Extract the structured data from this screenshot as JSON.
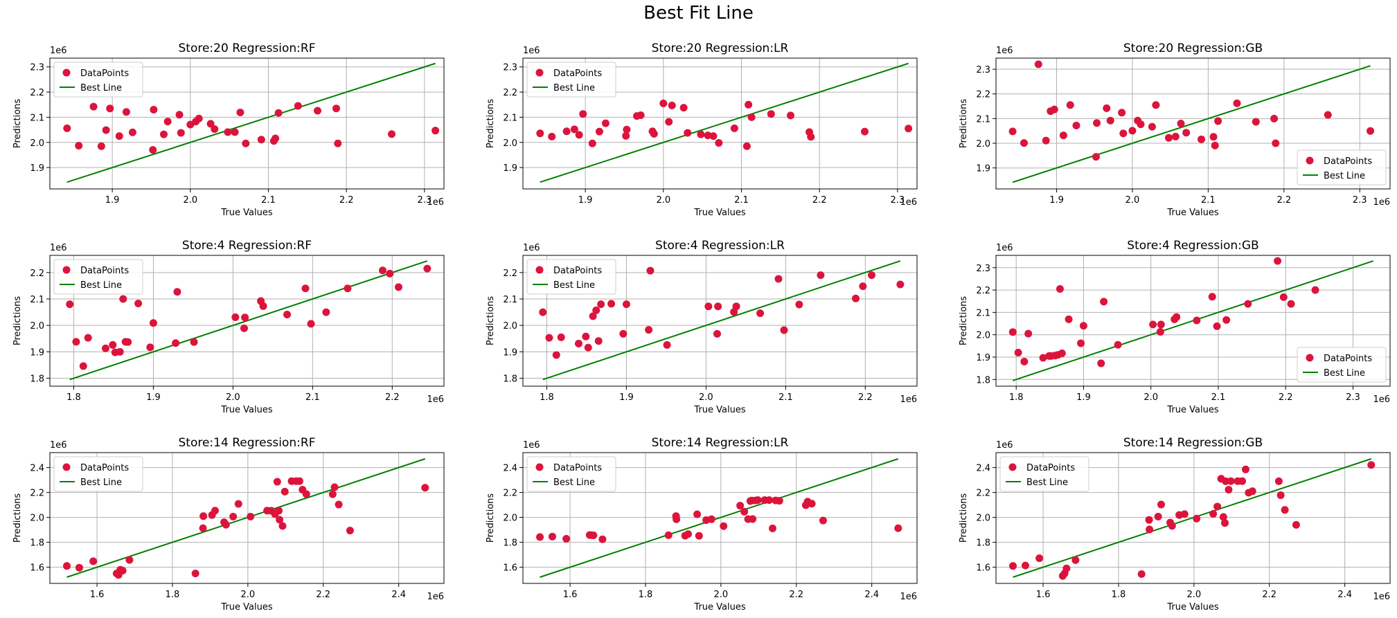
{
  "figure": {
    "title": "Best Fit Line",
    "colors": {
      "points": "#dc143c",
      "line": "#008000",
      "grid": "#b0b0b0"
    },
    "xlabel": "True Values",
    "ylabel": "Predictions",
    "offset_text": "1e6",
    "legend_labels": [
      "DataPoints",
      "Best Line"
    ]
  },
  "chart_data": [
    {
      "type": "scatter",
      "title": "Store:20 Regression:RF",
      "xlabel": "True Values",
      "ylabel": "Predictions",
      "xlim": [
        1.82,
        2.325
      ],
      "ylim": [
        1.815,
        2.335
      ],
      "xticks": [
        "1.9",
        "2.0",
        "2.1",
        "2.2",
        "2.3"
      ],
      "yticks": [
        "1.9",
        "2.0",
        "2.1",
        "2.2",
        "2.3"
      ],
      "legend": "top-left",
      "grid": true,
      "offset": "1e6",
      "series": [
        {
          "name": "DataPoints",
          "x": [
            1.842,
            1.857,
            1.876,
            1.886,
            1.892,
            1.897,
            1.909,
            1.918,
            1.926,
            1.952,
            1.953,
            1.966,
            1.971,
            1.986,
            1.988,
            2.0,
            2.007,
            2.011,
            2.026,
            2.031,
            2.048,
            2.057,
            2.064,
            2.071,
            2.091,
            2.107,
            2.109,
            2.113,
            2.138,
            2.163,
            2.187,
            2.189,
            2.258,
            2.314
          ],
          "y": [
            2.056,
            1.987,
            2.142,
            1.985,
            2.049,
            2.135,
            2.025,
            2.121,
            2.04,
            1.97,
            2.13,
            2.032,
            2.083,
            2.11,
            2.038,
            2.071,
            2.083,
            2.095,
            2.074,
            2.053,
            2.041,
            2.041,
            2.119,
            1.996,
            2.011,
            2.006,
            2.016,
            2.117,
            2.145,
            2.126,
            2.135,
            1.996,
            2.033,
            2.047
          ]
        },
        {
          "name": "Best Line",
          "x": [
            1.842,
            2.314
          ],
          "y": [
            1.842,
            2.314
          ]
        }
      ]
    },
    {
      "type": "scatter",
      "title": "Store:20 Regression:LR",
      "xlabel": "True Values",
      "ylabel": "Predictions",
      "xlim": [
        1.82,
        2.325
      ],
      "ylim": [
        1.815,
        2.335
      ],
      "xticks": [
        "1.9",
        "2.0",
        "2.1",
        "2.2",
        "2.3"
      ],
      "yticks": [
        "1.9",
        "2.0",
        "2.1",
        "2.2",
        "2.3"
      ],
      "legend": "top-left",
      "grid": true,
      "offset": "1e6",
      "series": [
        {
          "name": "DataPoints",
          "x": [
            1.842,
            1.857,
            1.876,
            1.886,
            1.892,
            1.897,
            1.909,
            1.918,
            1.926,
            1.952,
            1.953,
            1.966,
            1.971,
            1.986,
            1.988,
            2.0,
            2.007,
            2.011,
            2.026,
            2.031,
            2.048,
            2.057,
            2.064,
            2.071,
            2.091,
            2.107,
            2.109,
            2.113,
            2.138,
            2.163,
            2.187,
            2.189,
            2.258,
            2.314
          ],
          "y": [
            2.036,
            2.023,
            2.044,
            2.052,
            2.03,
            2.113,
            1.996,
            2.043,
            2.076,
            2.026,
            2.051,
            2.105,
            2.108,
            2.044,
            2.034,
            2.155,
            2.082,
            2.147,
            2.138,
            2.038,
            2.032,
            2.028,
            2.025,
            1.998,
            2.056,
            1.985,
            2.15,
            2.1,
            2.113,
            2.107,
            2.041,
            2.022,
            2.043,
            2.055
          ]
        },
        {
          "name": "Best Line",
          "x": [
            1.842,
            2.314
          ],
          "y": [
            1.842,
            2.314
          ]
        }
      ]
    },
    {
      "type": "scatter",
      "title": "Store:20 Regression:GB",
      "xlabel": "True Values",
      "ylabel": "Predictions",
      "xlim": [
        1.82,
        2.34
      ],
      "ylim": [
        1.815,
        2.345
      ],
      "xticks": [
        "1.9",
        "2.0",
        "2.1",
        "2.2",
        "2.3"
      ],
      "yticks": [
        "1.9",
        "2.0",
        "2.1",
        "2.2",
        "2.3"
      ],
      "legend": "bottom-right",
      "grid": true,
      "offset": "1e6",
      "series": [
        {
          "name": "DataPoints",
          "x": [
            1.842,
            1.857,
            1.876,
            1.886,
            1.892,
            1.897,
            1.909,
            1.918,
            1.926,
            1.952,
            1.953,
            1.966,
            1.971,
            1.986,
            1.988,
            2.0,
            2.007,
            2.011,
            2.026,
            2.031,
            2.048,
            2.057,
            2.064,
            2.071,
            2.091,
            2.107,
            2.109,
            2.113,
            2.138,
            2.163,
            2.187,
            2.189,
            2.258,
            2.314
          ],
          "y": [
            2.048,
            2.001,
            2.32,
            2.011,
            2.13,
            2.137,
            2.032,
            2.155,
            2.072,
            1.945,
            2.082,
            2.142,
            2.092,
            2.124,
            2.04,
            2.051,
            2.092,
            2.077,
            2.067,
            2.155,
            2.022,
            2.027,
            2.08,
            2.043,
            2.016,
            2.026,
            1.991,
            2.09,
            2.162,
            2.087,
            2.1,
            2.0,
            2.115,
            2.05
          ]
        },
        {
          "name": "Best Line",
          "x": [
            1.842,
            2.314
          ],
          "y": [
            1.842,
            2.314
          ]
        }
      ]
    },
    {
      "type": "scatter",
      "title": "Store:4 Regression:RF",
      "xlabel": "True Values",
      "ylabel": "Predictions",
      "xlim": [
        1.77,
        2.265
      ],
      "ylim": [
        1.77,
        2.265
      ],
      "xticks": [
        "1.8",
        "1.9",
        "2.0",
        "2.1",
        "2.2"
      ],
      "yticks": [
        "1.8",
        "1.9",
        "2.0",
        "2.1",
        "2.2"
      ],
      "legend": "top-left",
      "grid": true,
      "offset": "1e6",
      "series": [
        {
          "name": "DataPoints",
          "x": [
            1.795,
            1.803,
            1.812,
            1.818,
            1.84,
            1.849,
            1.852,
            1.858,
            1.862,
            1.865,
            1.868,
            1.881,
            1.896,
            1.9,
            1.928,
            1.93,
            1.951,
            2.003,
            2.014,
            2.015,
            2.035,
            2.038,
            2.068,
            2.091,
            2.098,
            2.117,
            2.144,
            2.188,
            2.197,
            2.208,
            2.244
          ],
          "y": [
            2.08,
            1.938,
            1.846,
            1.953,
            1.913,
            1.926,
            1.898,
            1.9,
            2.1,
            1.938,
            1.937,
            2.083,
            1.917,
            2.009,
            1.933,
            2.127,
            1.937,
            2.031,
            1.989,
            2.03,
            2.092,
            2.073,
            2.041,
            2.14,
            2.006,
            2.05,
            2.14,
            2.208,
            2.196,
            2.145,
            2.215
          ]
        },
        {
          "name": "Best Line",
          "x": [
            1.795,
            2.244
          ],
          "y": [
            1.795,
            2.244
          ]
        }
      ]
    },
    {
      "type": "scatter",
      "title": "Store:4 Regression:LR",
      "xlabel": "True Values",
      "ylabel": "Predictions",
      "xlim": [
        1.77,
        2.265
      ],
      "ylim": [
        1.77,
        2.265
      ],
      "xticks": [
        "1.8",
        "1.9",
        "2.0",
        "2.1",
        "2.2"
      ],
      "yticks": [
        "1.8",
        "1.9",
        "2.0",
        "2.1",
        "2.2"
      ],
      "legend": "top-left",
      "grid": true,
      "offset": "1e6",
      "series": [
        {
          "name": "DataPoints",
          "x": [
            1.795,
            1.803,
            1.812,
            1.818,
            1.84,
            1.849,
            1.852,
            1.858,
            1.862,
            1.865,
            1.868,
            1.881,
            1.896,
            1.9,
            1.928,
            1.93,
            1.951,
            2.003,
            2.014,
            2.015,
            2.035,
            2.038,
            2.068,
            2.091,
            2.098,
            2.117,
            2.144,
            2.188,
            2.197,
            2.208,
            2.244
          ],
          "y": [
            2.05,
            1.953,
            1.888,
            1.955,
            1.931,
            1.958,
            1.916,
            2.035,
            2.057,
            1.941,
            2.08,
            2.082,
            1.968,
            2.08,
            1.983,
            2.207,
            1.926,
            2.072,
            1.968,
            2.072,
            2.051,
            2.072,
            2.046,
            2.176,
            1.982,
            2.079,
            2.19,
            2.102,
            2.148,
            2.19,
            2.155
          ]
        },
        {
          "name": "Best Line",
          "x": [
            1.795,
            2.244
          ],
          "y": [
            1.795,
            2.244
          ]
        }
      ]
    },
    {
      "type": "scatter",
      "title": "Store:4 Regression:GB",
      "xlabel": "True Values",
      "ylabel": "Predictions",
      "xlim": [
        1.77,
        2.355
      ],
      "ylim": [
        1.77,
        2.355
      ],
      "xticks": [
        "1.8",
        "1.9",
        "2.0",
        "2.1",
        "2.2",
        "2.3"
      ],
      "yticks": [
        "1.8",
        "1.9",
        "2.0",
        "2.1",
        "2.2",
        "2.3"
      ],
      "legend": "bottom-right",
      "grid": true,
      "offset": "1e6",
      "series": [
        {
          "name": "DataPoints",
          "x": [
            1.795,
            1.803,
            1.812,
            1.818,
            1.84,
            1.849,
            1.852,
            1.858,
            1.862,
            1.865,
            1.868,
            1.878,
            1.896,
            1.9,
            1.926,
            1.93,
            1.951,
            2.003,
            2.014,
            2.015,
            2.035,
            2.038,
            2.068,
            2.091,
            2.098,
            2.112,
            2.144,
            2.188,
            2.197,
            2.208,
            2.244
          ],
          "y": [
            2.012,
            1.92,
            1.88,
            2.005,
            1.897,
            1.905,
            1.905,
            1.907,
            1.91,
            2.205,
            1.917,
            2.069,
            1.962,
            2.04,
            1.872,
            2.148,
            1.955,
            2.046,
            2.013,
            2.046,
            2.069,
            2.079,
            2.064,
            2.17,
            2.038,
            2.066,
            2.138,
            2.33,
            2.168,
            2.138,
            2.2
          ]
        },
        {
          "name": "Best Line",
          "x": [
            1.795,
            2.33
          ],
          "y": [
            1.795,
            2.33
          ]
        }
      ]
    },
    {
      "type": "scatter",
      "title": "Store:14 Regression:RF",
      "xlabel": "True Values",
      "ylabel": "Predictions",
      "xlim": [
        1.475,
        2.52
      ],
      "ylim": [
        1.47,
        2.52
      ],
      "xticks": [
        "1.6",
        "1.8",
        "2.0",
        "2.2",
        "2.4"
      ],
      "yticks": [
        "1.6",
        "1.8",
        "2.0",
        "2.2",
        "2.4"
      ],
      "legend": "top-left",
      "grid": true,
      "offset": "1e6",
      "series": [
        {
          "name": "DataPoints",
          "x": [
            1.52,
            1.553,
            1.59,
            1.652,
            1.657,
            1.662,
            1.668,
            1.686,
            1.861,
            1.881,
            1.882,
            1.905,
            1.913,
            1.937,
            1.942,
            1.961,
            1.975,
            2.007,
            2.051,
            2.062,
            2.072,
            2.078,
            2.082,
            2.084,
            2.092,
            2.098,
            2.116,
            2.128,
            2.137,
            2.145,
            2.155,
            2.225,
            2.23,
            2.241,
            2.271,
            2.47
          ],
          "y": [
            1.61,
            1.596,
            1.648,
            1.55,
            1.538,
            1.58,
            1.572,
            1.658,
            1.55,
            1.913,
            2.01,
            2.019,
            2.054,
            1.961,
            1.941,
            2.006,
            2.108,
            2.006,
            2.054,
            2.053,
            2.026,
            2.286,
            2.054,
            1.981,
            1.931,
            2.207,
            2.291,
            2.291,
            2.291,
            2.222,
            2.187,
            2.186,
            2.242,
            2.103,
            1.894,
            2.238
          ]
        },
        {
          "name": "Best Line",
          "x": [
            1.52,
            2.47
          ],
          "y": [
            1.52,
            2.47
          ]
        }
      ]
    },
    {
      "type": "scatter",
      "title": "Store:14 Regression:LR",
      "xlabel": "True Values",
      "ylabel": "Predictions",
      "xlim": [
        1.475,
        2.52
      ],
      "ylim": [
        1.47,
        2.52
      ],
      "xticks": [
        "1.6",
        "1.8",
        "2.0",
        "2.2",
        "2.4"
      ],
      "yticks": [
        "1.6",
        "1.8",
        "2.0",
        "2.2",
        "2.4"
      ],
      "legend": "top-left",
      "grid": true,
      "offset": "1e6",
      "series": [
        {
          "name": "DataPoints",
          "x": [
            1.52,
            1.553,
            1.59,
            1.652,
            1.657,
            1.662,
            1.686,
            1.861,
            1.881,
            1.882,
            1.905,
            1.913,
            1.937,
            1.942,
            1.961,
            1.975,
            2.007,
            2.051,
            2.062,
            2.072,
            2.078,
            2.082,
            2.084,
            2.092,
            2.098,
            2.116,
            2.128,
            2.137,
            2.145,
            2.155,
            2.225,
            2.23,
            2.241,
            2.271,
            2.47
          ],
          "y": [
            1.842,
            1.846,
            1.828,
            1.858,
            1.857,
            1.856,
            1.824,
            1.857,
            2.01,
            1.985,
            1.853,
            1.866,
            2.025,
            1.852,
            1.978,
            1.985,
            1.93,
            2.094,
            2.046,
            1.986,
            2.131,
            2.135,
            1.987,
            2.136,
            2.139,
            2.139,
            2.139,
            1.912,
            2.136,
            2.133,
            2.098,
            2.126,
            2.11,
            1.975,
            1.913
          ]
        },
        {
          "name": "Best Line",
          "x": [
            1.52,
            2.47
          ],
          "y": [
            1.52,
            2.47
          ]
        }
      ]
    },
    {
      "type": "scatter",
      "title": "Store:14 Regression:GB",
      "xlabel": "True Values",
      "ylabel": "Predictions",
      "xlim": [
        1.475,
        2.52
      ],
      "ylim": [
        1.47,
        2.52
      ],
      "xticks": [
        "1.6",
        "1.8",
        "2.0",
        "2.2",
        "2.4"
      ],
      "yticks": [
        "1.6",
        "1.8",
        "2.0",
        "2.2",
        "2.4"
      ],
      "legend": "top-left",
      "grid": true,
      "offset": "1e6",
      "series": [
        {
          "name": "DataPoints",
          "x": [
            1.52,
            1.553,
            1.59,
            1.652,
            1.657,
            1.662,
            1.686,
            1.861,
            1.881,
            1.882,
            1.905,
            1.913,
            1.937,
            1.942,
            1.961,
            1.975,
            2.007,
            2.051,
            2.062,
            2.072,
            2.078,
            2.082,
            2.084,
            2.092,
            2.098,
            2.116,
            2.128,
            2.137,
            2.145,
            2.155,
            2.225,
            2.23,
            2.241,
            2.271,
            2.47
          ],
          "y": [
            1.61,
            1.614,
            1.672,
            1.53,
            1.55,
            1.59,
            1.657,
            1.545,
            1.98,
            1.903,
            2.006,
            2.103,
            1.958,
            1.932,
            2.019,
            2.026,
            1.99,
            2.028,
            2.087,
            2.31,
            2.003,
            1.955,
            2.29,
            2.222,
            2.291,
            2.291,
            2.291,
            2.385,
            2.198,
            2.21,
            2.29,
            2.178,
            2.06,
            1.94,
            2.421
          ]
        },
        {
          "name": "Best Line",
          "x": [
            1.52,
            2.47
          ],
          "y": [
            1.52,
            2.47
          ]
        }
      ]
    }
  ]
}
